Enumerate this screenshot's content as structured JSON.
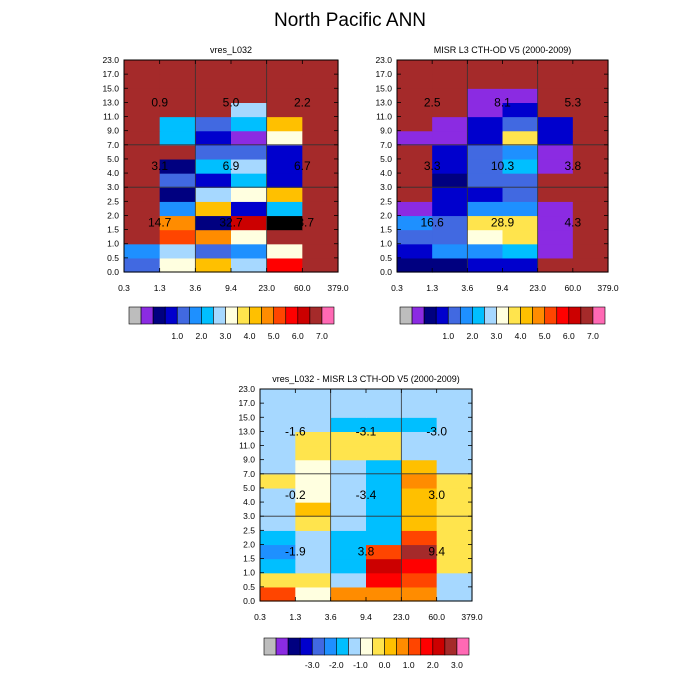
{
  "title": "North Pacific ANN",
  "chart_data": [
    {
      "type": "heatmap",
      "title": "vres_L032",
      "xticks": [
        "0.3",
        "1.3",
        "3.6",
        "9.4",
        "23.0",
        "60.0",
        "379.0"
      ],
      "yticks": [
        "0.0",
        "0.5",
        "1.0",
        "1.5",
        "2.0",
        "2.5",
        "3.0",
        "4.0",
        "5.0",
        "7.0",
        "9.0",
        "11.0",
        "13.0",
        "15.0",
        "17.0",
        "23.0"
      ],
      "cells": [
        [
          4,
          8,
          10,
          7,
          13,
          15
        ],
        [
          5,
          7,
          4,
          5,
          8,
          15
        ],
        [
          15,
          12,
          11,
          8,
          15,
          15
        ],
        [
          15,
          11,
          2,
          14,
          18,
          15
        ],
        [
          15,
          5,
          10,
          3,
          6,
          15
        ],
        [
          15,
          2,
          7,
          8,
          10,
          15
        ],
        [
          15,
          4,
          3,
          6,
          3,
          15
        ],
        [
          15,
          2,
          6,
          7,
          3,
          15
        ],
        [
          15,
          15,
          4,
          4,
          3,
          15
        ],
        [
          15,
          6,
          3,
          1,
          8,
          15
        ],
        [
          15,
          6,
          4,
          6,
          10,
          15
        ],
        [
          15,
          15,
          15,
          7,
          15,
          15
        ],
        [
          15,
          15,
          15,
          15,
          15,
          15
        ],
        [
          15,
          15,
          15,
          15,
          15,
          15
        ],
        [
          15,
          15,
          15,
          15,
          15,
          15
        ]
      ],
      "labels": [
        {
          "text": "14.7",
          "xi": 0.5,
          "yi": 3.5
        },
        {
          "text": "32.7",
          "xi": 2.5,
          "yi": 3.5
        },
        {
          "text": "13.7",
          "xi": 4.5,
          "yi": 3.5
        },
        {
          "text": "3.1",
          "xi": 0.5,
          "yi": 7.5
        },
        {
          "text": "6.9",
          "xi": 2.5,
          "yi": 7.5
        },
        {
          "text": "6.7",
          "xi": 4.5,
          "yi": 7.5
        },
        {
          "text": "0.9",
          "xi": 0.5,
          "yi": 12.0
        },
        {
          "text": "5.0",
          "xi": 2.5,
          "yi": 12.0
        },
        {
          "text": "2.2",
          "xi": 4.5,
          "yi": 12.0
        }
      ],
      "colorbar": {
        "labels": [
          "1.0",
          "2.0",
          "3.0",
          "4.0",
          "5.0",
          "6.0",
          "7.0"
        ]
      }
    },
    {
      "type": "heatmap",
      "title": "MISR L3 CTH-OD V5 (2000-2009)",
      "xticks": [
        "0.3",
        "1.3",
        "3.6",
        "9.4",
        "23.0",
        "60.0",
        "379.0"
      ],
      "yticks": [
        "0.0",
        "0.5",
        "1.0",
        "1.5",
        "2.0",
        "2.5",
        "3.0",
        "4.0",
        "5.0",
        "7.0",
        "9.0",
        "11.0",
        "13.0",
        "15.0",
        "17.0",
        "23.0"
      ],
      "cells": [
        [
          2,
          2,
          3,
          3,
          15,
          15
        ],
        [
          3,
          5,
          5,
          6,
          1,
          15
        ],
        [
          4,
          4,
          8,
          9,
          1,
          15
        ],
        [
          5,
          4,
          9,
          9,
          1,
          15
        ],
        [
          1,
          3,
          5,
          5,
          1,
          15
        ],
        [
          15,
          3,
          3,
          4,
          15,
          15
        ],
        [
          15,
          2,
          4,
          4,
          15,
          15
        ],
        [
          15,
          3,
          4,
          6,
          1,
          15
        ],
        [
          15,
          3,
          4,
          5,
          1,
          15
        ],
        [
          1,
          1,
          3,
          9,
          3,
          15
        ],
        [
          15,
          1,
          3,
          4,
          3,
          15
        ],
        [
          15,
          15,
          1,
          3,
          15,
          15
        ],
        [
          15,
          15,
          1,
          1,
          15,
          15
        ],
        [
          15,
          15,
          15,
          15,
          15,
          15
        ],
        [
          15,
          15,
          15,
          15,
          15,
          15
        ]
      ],
      "labels": [
        {
          "text": "16.6",
          "xi": 0.5,
          "yi": 3.5
        },
        {
          "text": "28.9",
          "xi": 2.5,
          "yi": 3.5
        },
        {
          "text": "4.3",
          "xi": 4.5,
          "yi": 3.5
        },
        {
          "text": "3.3",
          "xi": 0.5,
          "yi": 7.5
        },
        {
          "text": "10.3",
          "xi": 2.5,
          "yi": 7.5
        },
        {
          "text": "3.8",
          "xi": 4.5,
          "yi": 7.5
        },
        {
          "text": "2.5",
          "xi": 0.5,
          "yi": 12.0
        },
        {
          "text": "8.1",
          "xi": 2.5,
          "yi": 12.0
        },
        {
          "text": "5.3",
          "xi": 4.5,
          "yi": 12.0
        }
      ],
      "colorbar": {
        "labels": [
          "1.0",
          "2.0",
          "3.0",
          "4.0",
          "5.0",
          "6.0",
          "7.0"
        ]
      }
    },
    {
      "type": "heatmap",
      "title": "vres_L032 - MISR L3 CTH-OD V5 (2000-2009)",
      "xticks": [
        "0.3",
        "1.3",
        "3.6",
        "9.4",
        "23.0",
        "60.0",
        "379.0"
      ],
      "yticks": [
        "0.0",
        "0.5",
        "1.0",
        "1.5",
        "2.0",
        "2.5",
        "3.0",
        "4.0",
        "5.0",
        "7.0",
        "9.0",
        "11.0",
        "13.0",
        "15.0",
        "17.0",
        "23.0"
      ],
      "cells": [
        [
          12,
          8,
          11,
          11,
          11,
          7
        ],
        [
          9,
          9,
          7,
          13,
          12,
          7
        ],
        [
          6,
          7,
          6,
          14,
          13,
          9
        ],
        [
          5,
          7,
          6,
          12,
          15,
          9
        ],
        [
          6,
          7,
          6,
          6,
          12,
          9
        ],
        [
          7,
          9,
          7,
          6,
          10,
          9
        ],
        [
          7,
          10,
          7,
          6,
          10,
          9
        ],
        [
          7,
          8,
          7,
          6,
          10,
          9
        ],
        [
          9,
          8,
          7,
          6,
          11,
          9
        ],
        [
          7,
          8,
          7,
          6,
          10,
          7
        ],
        [
          7,
          9,
          9,
          9,
          7,
          7
        ],
        [
          7,
          9,
          9,
          9,
          7,
          7
        ],
        [
          7,
          7,
          6,
          6,
          6,
          7
        ],
        [
          7,
          7,
          7,
          7,
          7,
          7
        ],
        [
          7,
          7,
          7,
          7,
          7,
          7
        ]
      ],
      "labels": [
        {
          "text": "-1.9",
          "xi": 0.5,
          "yi": 3.5
        },
        {
          "text": "3.8",
          "xi": 2.5,
          "yi": 3.5
        },
        {
          "text": "9.4",
          "xi": 4.5,
          "yi": 3.5
        },
        {
          "text": "-0.2",
          "xi": 0.5,
          "yi": 7.5
        },
        {
          "text": "-3.4",
          "xi": 2.5,
          "yi": 7.5
        },
        {
          "text": "3.0",
          "xi": 4.5,
          "yi": 7.5
        },
        {
          "text": "-1.6",
          "xi": 0.5,
          "yi": 12.0
        },
        {
          "text": "-3.1",
          "xi": 2.5,
          "yi": 12.0
        },
        {
          "text": "-3.0",
          "xi": 4.5,
          "yi": 12.0
        }
      ],
      "colorbar": {
        "labels": [
          "-3.0",
          "-2.0",
          "-1.0",
          "0.0",
          "1.0",
          "2.0",
          "3.0"
        ]
      }
    }
  ],
  "palette": [
    "#bdbdbd",
    "#8b2be2",
    "#000080",
    "#0000cd",
    "#4169e1",
    "#1e90ff",
    "#00bfff",
    "#a6d8ff",
    "#ffffe0",
    "#ffe44d",
    "#ffc000",
    "#ff8c00",
    "#ff4500",
    "#ff0000",
    "#cc0000",
    "#a52a2a",
    "#ff69b4"
  ]
}
